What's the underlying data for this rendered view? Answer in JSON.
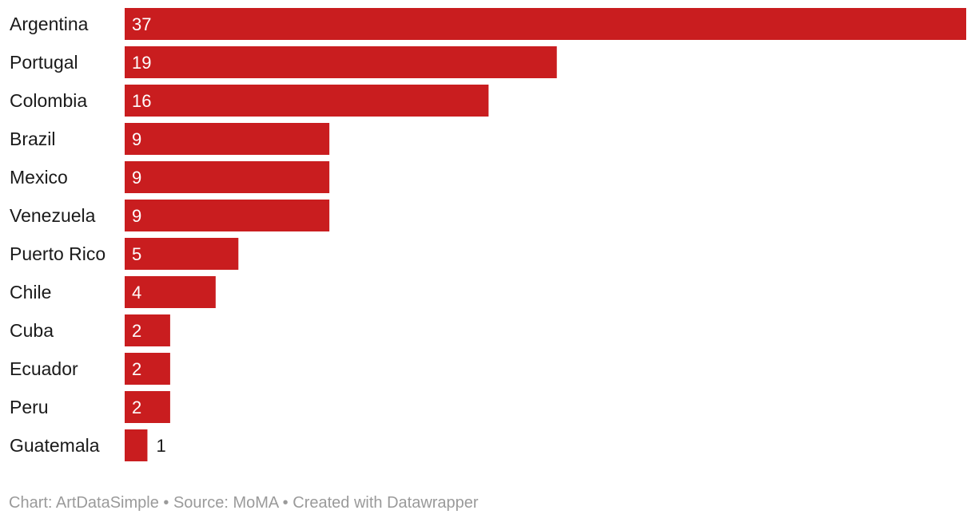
{
  "chart_data": {
    "type": "bar",
    "orientation": "horizontal",
    "categories": [
      "Argentina",
      "Portugal",
      "Colombia",
      "Brazil",
      "Mexico",
      "Venezuela",
      "Puerto Rico",
      "Chile",
      "Cuba",
      "Ecuador",
      "Peru",
      "Guatemala"
    ],
    "values": [
      37,
      19,
      16,
      9,
      9,
      9,
      5,
      4,
      2,
      2,
      2,
      1
    ],
    "title": "",
    "xlabel": "",
    "ylabel": "",
    "xlim": [
      0,
      37
    ],
    "grid": false,
    "legend": "none",
    "bar_color": "#c91d1f",
    "label_color_inside": "#ffffff",
    "label_color_outside": "#1a1a1a"
  },
  "footer": {
    "text": "Chart: ArtDataSimple • Source: MoMA • Created with Datawrapper"
  }
}
